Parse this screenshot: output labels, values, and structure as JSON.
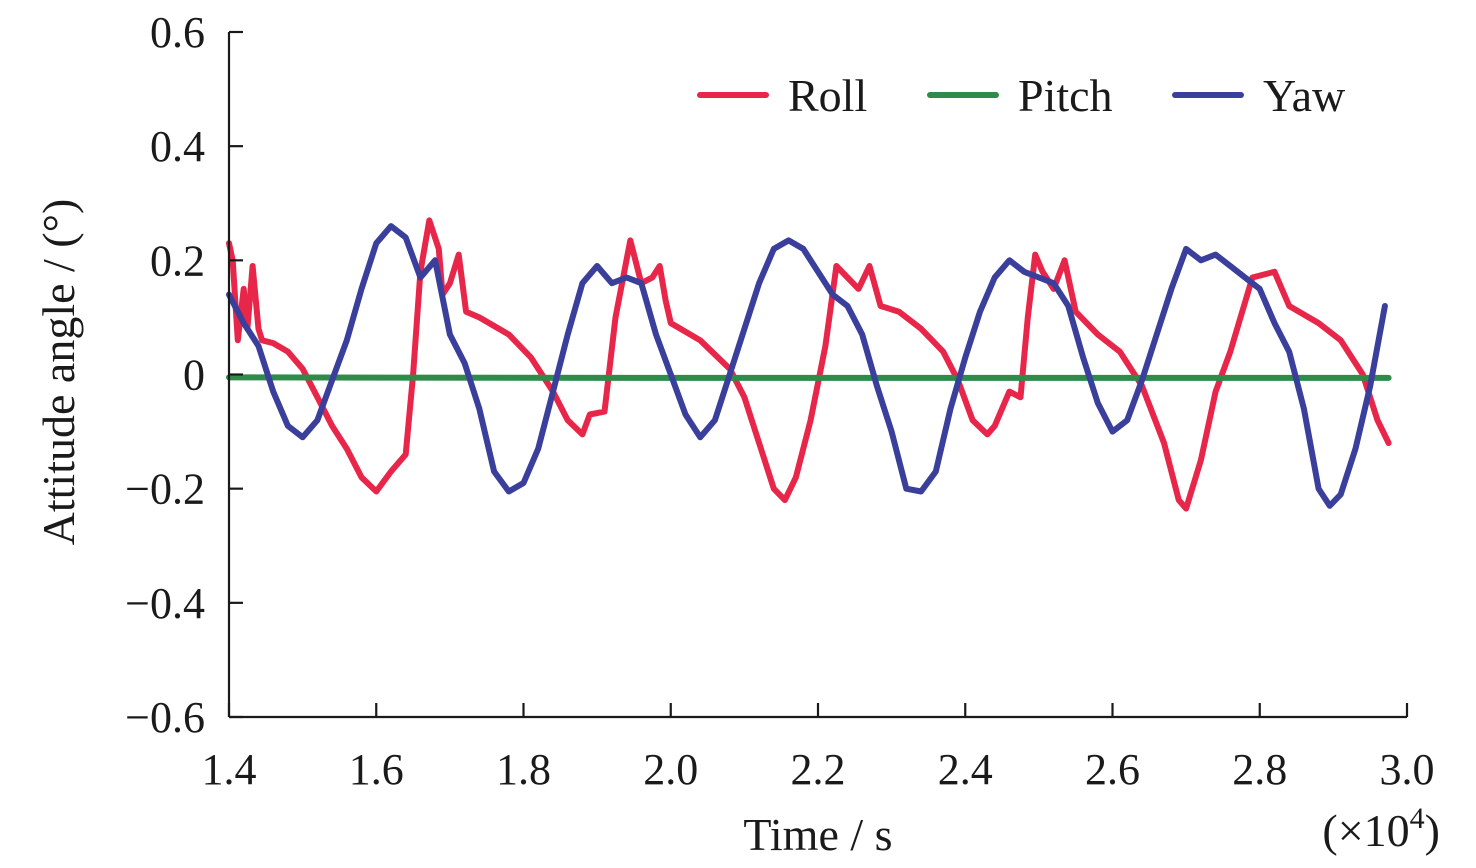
{
  "chart_data": {
    "type": "line",
    "title": "",
    "xlabel": "Time / s",
    "ylabel": "Attitude angle / (°)",
    "x_multiplier_prefix": "(×10",
    "x_multiplier_exp": "4",
    "x_multiplier_suffix": ")",
    "xlim": [
      1.4,
      3.0
    ],
    "ylim": [
      -0.6,
      0.6
    ],
    "x_ticks": [
      1.4,
      1.6,
      1.8,
      2.0,
      2.2,
      2.4,
      2.6,
      2.8,
      3.0
    ],
    "x_tick_labels": [
      "1.4",
      "1.6",
      "1.8",
      "2.0",
      "2.2",
      "2.4",
      "2.6",
      "2.8",
      "3.0"
    ],
    "y_ticks": [
      0.6,
      0.4,
      0.2,
      0,
      -0.2,
      -0.4,
      -0.6
    ],
    "y_tick_labels": [
      "0.6",
      "0.4",
      "0.2",
      "0",
      "−0.2",
      "−0.4",
      "−0.6"
    ],
    "grid": false,
    "legend": {
      "placement": "top-right",
      "orientation": "horizontal"
    },
    "series": [
      {
        "name": "Roll",
        "color": "#e8264a",
        "points": [
          [
            1.4,
            0.23
          ],
          [
            1.405,
            0.2
          ],
          [
            1.412,
            0.06
          ],
          [
            1.42,
            0.15
          ],
          [
            1.425,
            0.08
          ],
          [
            1.432,
            0.19
          ],
          [
            1.44,
            0.08
          ],
          [
            1.445,
            0.06
          ],
          [
            1.46,
            0.055
          ],
          [
            1.48,
            0.04
          ],
          [
            1.5,
            0.01
          ],
          [
            1.52,
            -0.04
          ],
          [
            1.54,
            -0.09
          ],
          [
            1.56,
            -0.13
          ],
          [
            1.58,
            -0.18
          ],
          [
            1.6,
            -0.205
          ],
          [
            1.62,
            -0.17
          ],
          [
            1.64,
            -0.14
          ],
          [
            1.65,
            0.0
          ],
          [
            1.66,
            0.18
          ],
          [
            1.672,
            0.27
          ],
          [
            1.685,
            0.22
          ],
          [
            1.69,
            0.14
          ],
          [
            1.7,
            0.16
          ],
          [
            1.712,
            0.21
          ],
          [
            1.722,
            0.11
          ],
          [
            1.74,
            0.1
          ],
          [
            1.78,
            0.07
          ],
          [
            1.81,
            0.03
          ],
          [
            1.84,
            -0.03
          ],
          [
            1.86,
            -0.08
          ],
          [
            1.88,
            -0.105
          ],
          [
            1.89,
            -0.07
          ],
          [
            1.91,
            -0.065
          ],
          [
            1.925,
            0.1
          ],
          [
            1.945,
            0.235
          ],
          [
            1.96,
            0.16
          ],
          [
            1.975,
            0.17
          ],
          [
            1.985,
            0.19
          ],
          [
            1.993,
            0.13
          ],
          [
            2.0,
            0.09
          ],
          [
            2.04,
            0.06
          ],
          [
            2.08,
            0.01
          ],
          [
            2.1,
            -0.04
          ],
          [
            2.12,
            -0.12
          ],
          [
            2.14,
            -0.2
          ],
          [
            2.155,
            -0.22
          ],
          [
            2.17,
            -0.18
          ],
          [
            2.19,
            -0.08
          ],
          [
            2.21,
            0.05
          ],
          [
            2.225,
            0.19
          ],
          [
            2.24,
            0.17
          ],
          [
            2.255,
            0.15
          ],
          [
            2.27,
            0.19
          ],
          [
            2.285,
            0.12
          ],
          [
            2.31,
            0.11
          ],
          [
            2.34,
            0.08
          ],
          [
            2.37,
            0.04
          ],
          [
            2.39,
            -0.01
          ],
          [
            2.41,
            -0.08
          ],
          [
            2.43,
            -0.105
          ],
          [
            2.44,
            -0.09
          ],
          [
            2.46,
            -0.03
          ],
          [
            2.475,
            -0.04
          ],
          [
            2.485,
            0.1
          ],
          [
            2.495,
            0.21
          ],
          [
            2.505,
            0.18
          ],
          [
            2.52,
            0.15
          ],
          [
            2.535,
            0.2
          ],
          [
            2.55,
            0.11
          ],
          [
            2.58,
            0.07
          ],
          [
            2.61,
            0.04
          ],
          [
            2.64,
            -0.02
          ],
          [
            2.67,
            -0.12
          ],
          [
            2.69,
            -0.22
          ],
          [
            2.7,
            -0.235
          ],
          [
            2.72,
            -0.15
          ],
          [
            2.74,
            -0.03
          ],
          [
            2.76,
            0.04
          ],
          [
            2.79,
            0.17
          ],
          [
            2.82,
            0.18
          ],
          [
            2.84,
            0.12
          ],
          [
            2.88,
            0.09
          ],
          [
            2.91,
            0.06
          ],
          [
            2.94,
            0.0
          ],
          [
            2.96,
            -0.08
          ],
          [
            2.975,
            -0.12
          ]
        ]
      },
      {
        "name": "Pitch",
        "color": "#2e8b4a",
        "points": [
          [
            1.4,
            -0.005
          ],
          [
            2.0,
            -0.006
          ],
          [
            2.6,
            -0.006
          ],
          [
            2.975,
            -0.006
          ]
        ]
      },
      {
        "name": "Yaw",
        "color": "#3a3f9c",
        "points": [
          [
            1.4,
            0.14
          ],
          [
            1.42,
            0.09
          ],
          [
            1.44,
            0.05
          ],
          [
            1.46,
            -0.03
          ],
          [
            1.48,
            -0.09
          ],
          [
            1.5,
            -0.11
          ],
          [
            1.52,
            -0.08
          ],
          [
            1.54,
            -0.01
          ],
          [
            1.56,
            0.06
          ],
          [
            1.58,
            0.15
          ],
          [
            1.6,
            0.23
          ],
          [
            1.62,
            0.26
          ],
          [
            1.64,
            0.24
          ],
          [
            1.66,
            0.17
          ],
          [
            1.68,
            0.2
          ],
          [
            1.7,
            0.07
          ],
          [
            1.72,
            0.02
          ],
          [
            1.74,
            -0.06
          ],
          [
            1.76,
            -0.17
          ],
          [
            1.78,
            -0.205
          ],
          [
            1.8,
            -0.19
          ],
          [
            1.82,
            -0.13
          ],
          [
            1.84,
            -0.03
          ],
          [
            1.86,
            0.07
          ],
          [
            1.88,
            0.16
          ],
          [
            1.9,
            0.19
          ],
          [
            1.92,
            0.16
          ],
          [
            1.94,
            0.17
          ],
          [
            1.96,
            0.16
          ],
          [
            1.98,
            0.07
          ],
          [
            2.0,
            0.0
          ],
          [
            2.02,
            -0.07
          ],
          [
            2.04,
            -0.11
          ],
          [
            2.06,
            -0.08
          ],
          [
            2.08,
            0.0
          ],
          [
            2.1,
            0.08
          ],
          [
            2.12,
            0.16
          ],
          [
            2.14,
            0.22
          ],
          [
            2.16,
            0.235
          ],
          [
            2.18,
            0.22
          ],
          [
            2.2,
            0.18
          ],
          [
            2.22,
            0.14
          ],
          [
            2.24,
            0.12
          ],
          [
            2.26,
            0.07
          ],
          [
            2.28,
            -0.02
          ],
          [
            2.3,
            -0.1
          ],
          [
            2.32,
            -0.2
          ],
          [
            2.34,
            -0.205
          ],
          [
            2.36,
            -0.17
          ],
          [
            2.38,
            -0.06
          ],
          [
            2.4,
            0.03
          ],
          [
            2.42,
            0.11
          ],
          [
            2.44,
            0.17
          ],
          [
            2.46,
            0.2
          ],
          [
            2.48,
            0.18
          ],
          [
            2.5,
            0.17
          ],
          [
            2.52,
            0.16
          ],
          [
            2.54,
            0.12
          ],
          [
            2.56,
            0.03
          ],
          [
            2.58,
            -0.05
          ],
          [
            2.6,
            -0.1
          ],
          [
            2.62,
            -0.08
          ],
          [
            2.64,
            -0.01
          ],
          [
            2.66,
            0.07
          ],
          [
            2.68,
            0.15
          ],
          [
            2.7,
            0.22
          ],
          [
            2.72,
            0.2
          ],
          [
            2.74,
            0.21
          ],
          [
            2.76,
            0.19
          ],
          [
            2.78,
            0.17
          ],
          [
            2.8,
            0.15
          ],
          [
            2.82,
            0.09
          ],
          [
            2.84,
            0.04
          ],
          [
            2.86,
            -0.06
          ],
          [
            2.88,
            -0.2
          ],
          [
            2.895,
            -0.23
          ],
          [
            2.91,
            -0.21
          ],
          [
            2.93,
            -0.13
          ],
          [
            2.95,
            -0.02
          ],
          [
            2.97,
            0.12
          ]
        ]
      }
    ]
  }
}
